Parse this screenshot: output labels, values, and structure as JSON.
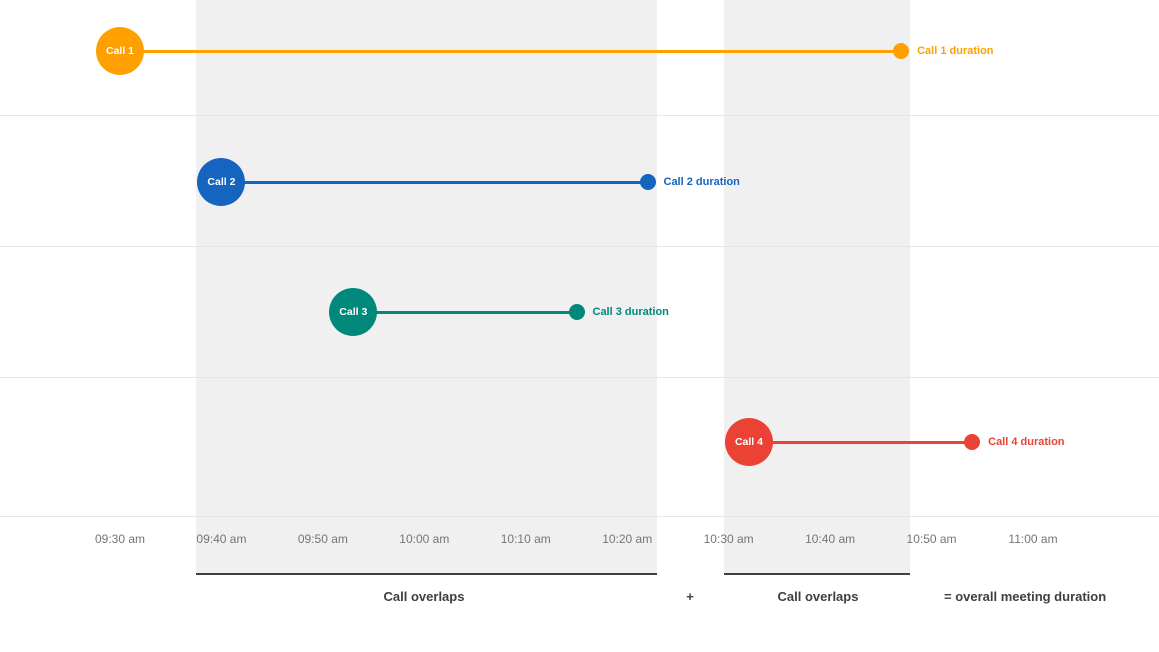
{
  "chart_data": {
    "type": "bar",
    "subtype": "gantt-timeline",
    "title": "",
    "x_axis": {
      "ticks": [
        "09:30 am",
        "09:40 am",
        "09:50 am",
        "10:00 am",
        "10:10 am",
        "10:20 am",
        "10:30 am",
        "10:40 am",
        "10:50 am",
        "11:00 am"
      ],
      "range": [
        "09:30 am",
        "11:00 am"
      ],
      "grid": "horizontal-only"
    },
    "calls": [
      {
        "label": "Call 1",
        "start": "09:30 am",
        "end": "10:47 am",
        "duration_label": "Call 1 duration",
        "color": "#FFA000"
      },
      {
        "label": "Call 2",
        "start": "09:40 am",
        "end": "10:22 am",
        "duration_label": "Call 2 duration",
        "color": "#1565C0"
      },
      {
        "label": "Call 3",
        "start": "09:53 am",
        "end": "10:15 am",
        "duration_label": "Call 3 duration",
        "color": "#00897B"
      },
      {
        "label": "Call 4",
        "start": "10:32 am",
        "end": "10:54 am",
        "duration_label": "Call 4 duration",
        "color": "#EA4335"
      }
    ],
    "overlap_bands": [
      {
        "start": "09:40 am",
        "end": "10:22 am",
        "label": "Call overlaps"
      },
      {
        "start": "10:32 am",
        "end": "10:47 am",
        "label": "Call overlaps"
      }
    ],
    "band_background": "#F0F0F0",
    "legend_position": "none"
  },
  "captions": {
    "overlap_left": "Call overlaps",
    "plus": "+",
    "overlap_right": "Call overlaps",
    "equals_overall": "= overall meeting duration"
  }
}
